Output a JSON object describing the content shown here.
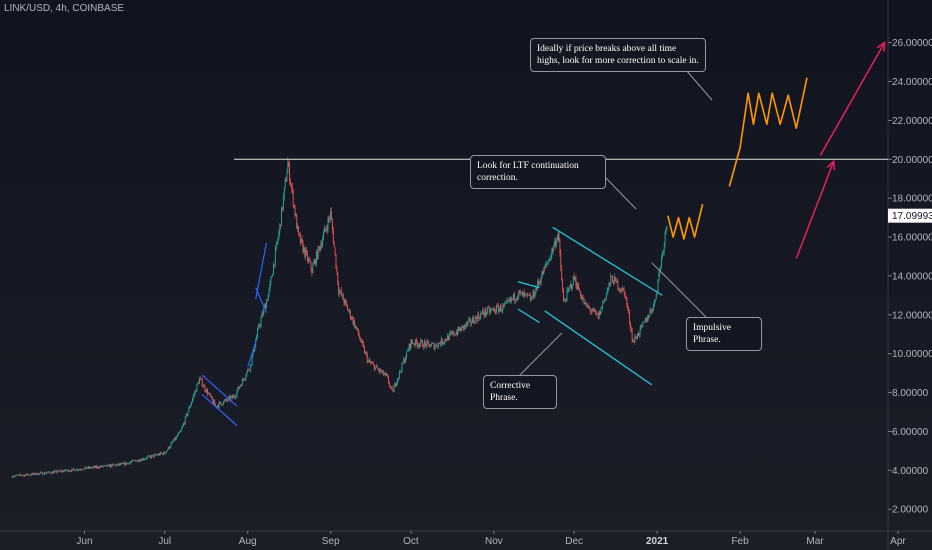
{
  "header": {
    "symbol": "LINK/USD, 4h, COINBASE"
  },
  "colors": {
    "background": "#131722",
    "candle_up": "#26a69a",
    "candle_down": "#ef5350",
    "channel": "#26c6da",
    "flag": "#2962ff",
    "projection": "#ff9800",
    "arrow": "#e91e63",
    "resistance": "#e0e0e0"
  },
  "annotations": {
    "ath_note": "Ideally if price breaks above all time highs, look for more correction to scale in.",
    "ltf_note": "Look for LTF continuation correction.",
    "impulsive_note": "Impulsive Phrase.",
    "corrective_note": "Corrective Phrase."
  },
  "chart_data": {
    "type": "candlestick",
    "title": "LINK/USD, 4h, COINBASE",
    "x_axis": {
      "tick_labels": [
        "Jun",
        "Jul",
        "Aug",
        "Sep",
        "Oct",
        "Nov",
        "Dec",
        "2021",
        "Feb",
        "Mar",
        "Apr"
      ]
    },
    "y_axis": {
      "range": [
        0.5,
        27.5
      ],
      "tick_labels": [
        "2.00000",
        "4.00000",
        "6.00000",
        "8.00000",
        "10.00000",
        "12.00000",
        "14.00000",
        "16.00000",
        "18.00000",
        "20.00000",
        "22.00000",
        "24.00000",
        "26.00000"
      ]
    },
    "last_price": "17.09993",
    "resistance_level": 20.0,
    "price_path": [
      [
        "2020-05-05",
        3.7
      ],
      [
        "2020-05-20",
        3.9
      ],
      [
        "2020-06-01",
        4.1
      ],
      [
        "2020-06-15",
        4.3
      ],
      [
        "2020-07-01",
        4.9
      ],
      [
        "2020-07-07",
        6.0
      ],
      [
        "2020-07-14",
        8.7
      ],
      [
        "2020-07-20",
        7.3
      ],
      [
        "2020-07-27",
        7.8
      ],
      [
        "2020-08-02",
        9.4
      ],
      [
        "2020-08-05",
        11.3
      ],
      [
        "2020-08-09",
        13.2
      ],
      [
        "2020-08-13",
        16.5
      ],
      [
        "2020-08-16",
        19.8
      ],
      [
        "2020-08-20",
        16.0
      ],
      [
        "2020-08-25",
        14.3
      ],
      [
        "2020-09-01",
        17.2
      ],
      [
        "2020-09-04",
        13.3
      ],
      [
        "2020-09-10",
        11.5
      ],
      [
        "2020-09-15",
        9.6
      ],
      [
        "2020-09-22",
        8.8
      ],
      [
        "2020-09-24",
        8.0
      ],
      [
        "2020-10-01",
        10.6
      ],
      [
        "2020-10-10",
        10.4
      ],
      [
        "2020-10-20",
        11.3
      ],
      [
        "2020-10-28",
        12.1
      ],
      [
        "2020-11-05",
        12.4
      ],
      [
        "2020-11-10",
        13.1
      ],
      [
        "2020-11-15",
        12.8
      ],
      [
        "2020-11-22",
        15.0
      ],
      [
        "2020-11-25",
        16.2
      ],
      [
        "2020-11-27",
        12.6
      ],
      [
        "2020-12-01",
        13.9
      ],
      [
        "2020-12-05",
        12.5
      ],
      [
        "2020-12-10",
        11.9
      ],
      [
        "2020-12-15",
        13.9
      ],
      [
        "2020-12-20",
        13.1
      ],
      [
        "2020-12-23",
        10.6
      ],
      [
        "2020-12-27",
        11.5
      ],
      [
        "2020-12-31",
        12.6
      ],
      [
        "2021-01-03",
        15.2
      ],
      [
        "2021-01-05",
        17.1
      ]
    ],
    "projections": {
      "ltf_correction": [
        [
          "2021-01-05",
          17.1
        ],
        [
          "2021-01-07",
          16.0
        ],
        [
          "2021-01-09",
          17.0
        ],
        [
          "2021-01-11",
          15.9
        ],
        [
          "2021-01-13",
          17.0
        ],
        [
          "2021-01-15",
          16.0
        ],
        [
          "2021-01-18",
          17.7
        ]
      ],
      "ath_correction": [
        [
          "2021-01-28",
          18.6
        ],
        [
          "2021-02-01",
          20.6
        ],
        [
          "2021-02-04",
          23.4
        ],
        [
          "2021-02-06",
          21.8
        ],
        [
          "2021-02-08",
          23.4
        ],
        [
          "2021-02-11",
          21.8
        ],
        [
          "2021-02-13",
          23.4
        ],
        [
          "2021-02-16",
          21.8
        ],
        [
          "2021-02-19",
          23.3
        ],
        [
          "2021-02-22",
          21.6
        ],
        [
          "2021-02-26",
          24.2
        ]
      ]
    },
    "channel": {
      "upper": [
        [
          "2020-11-23",
          16.5
        ],
        [
          "2021-01-03",
          13.0
        ]
      ],
      "lower": [
        [
          "2020-11-20",
          12.2
        ],
        [
          "2020-12-30",
          8.4
        ]
      ],
      "small_top": [
        [
          "2020-11-10",
          13.7
        ],
        [
          "2020-11-18",
          13.4
        ]
      ],
      "small_bottom": [
        [
          "2020-11-10",
          12.3
        ],
        [
          "2020-11-18",
          11.6
        ]
      ]
    },
    "flags": [
      [
        [
          "2020-07-15",
          8.9
        ],
        [
          "2020-07-28",
          7.3
        ]
      ],
      [
        [
          "2020-07-15",
          7.9
        ],
        [
          "2020-07-28",
          6.3
        ]
      ],
      [
        [
          "2020-08-04",
          12.8
        ],
        [
          "2020-08-08",
          15.7
        ]
      ],
      [
        [
          "2020-08-04",
          13.4
        ],
        [
          "2020-08-08",
          12.1
        ]
      ],
      [
        [
          "2020-08-01",
          9.3
        ],
        [
          "2020-08-04",
          10.6
        ]
      ]
    ],
    "arrows": [
      [
        [
          "2021-02-22",
          14.9
        ],
        [
          "2021-03-08",
          19.9
        ]
      ],
      [
        [
          "2021-03-03",
          20.2
        ],
        [
          "2021-03-27",
          26.0
        ]
      ]
    ]
  }
}
